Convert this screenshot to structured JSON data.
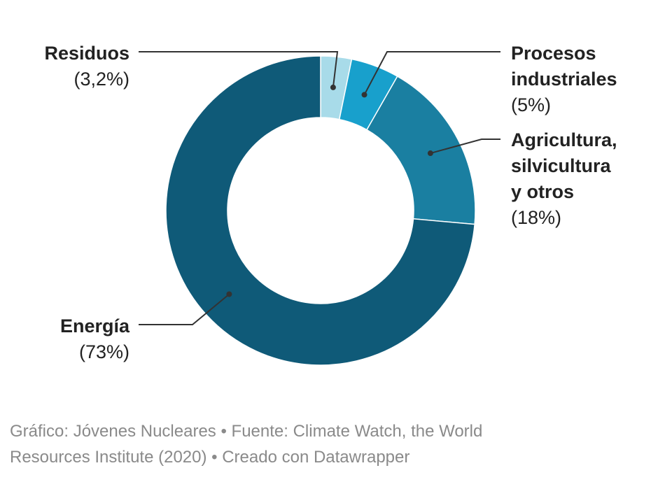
{
  "chart_data": {
    "type": "pie",
    "donut": true,
    "slices": [
      {
        "label": "Residuos",
        "percent_label": "(3,2%)",
        "value": 3.2,
        "color": "#a8dbe9"
      },
      {
        "label": "Procesos industriales",
        "percent_label": "(5%)",
        "value": 5,
        "color": "#18a0cc"
      },
      {
        "label": "Agricultura, silvicultura y otros",
        "percent_label": "(18%)",
        "value": 18,
        "color": "#1a7fa1"
      },
      {
        "label": "Energía",
        "percent_label": "(73%)",
        "value": 73,
        "color": "#0f5a78"
      }
    ]
  },
  "labels": {
    "residuos": {
      "name": "Residuos",
      "pct": "(3,2%)"
    },
    "procesos": {
      "name": "Procesos\nindustriales",
      "pct": "(5%)"
    },
    "agricultura": {
      "name": "Agricultura,\nsilvicultura\ny otros",
      "pct": "(18%)"
    },
    "energia": {
      "name": "Energía",
      "pct": "(73%)"
    }
  },
  "footer": {
    "line1": "Gráfico: Jóvenes Nucleares • Fuente: Climate Watch, the World",
    "line2": "Resources Institute (2020) • Creado con Datawrapper"
  },
  "colors": {
    "leader_line": "#333333",
    "footer_text": "#8a8a8a"
  }
}
